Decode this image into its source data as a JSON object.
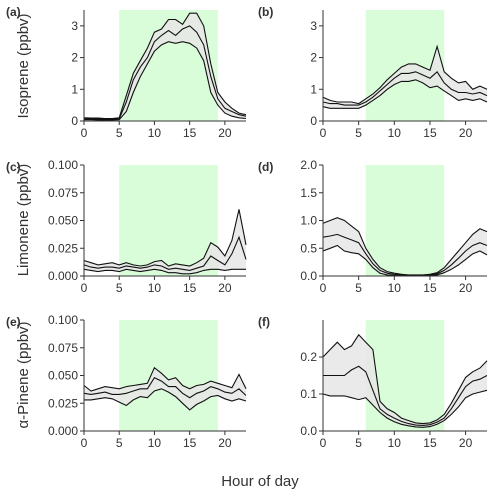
{
  "figure": {
    "xlabel": "Hour of day",
    "row_ylabels": [
      "Isoprene (ppbv)",
      "Limonene (ppbv)",
      "α-Pinene (ppbv)"
    ]
  },
  "colors": {
    "daylight": "#d9fcd9",
    "ribbon": "#e6e6e6",
    "line": "#111111",
    "axis": "#333333"
  },
  "chart_data": [
    {
      "type": "area",
      "panel": "(a)",
      "xlim": [
        0,
        23
      ],
      "ylim": [
        0,
        3.5
      ],
      "xticks": [
        0,
        5,
        10,
        15,
        20
      ],
      "yticks": [
        0,
        1,
        2,
        3
      ],
      "tick_decimals": 0,
      "daylight": [
        5,
        19
      ],
      "x": [
        0,
        1,
        2,
        3,
        4,
        5,
        6,
        7,
        8,
        9,
        10,
        11,
        12,
        13,
        14,
        15,
        16,
        17,
        18,
        19,
        20,
        21,
        22,
        23
      ],
      "series": [
        {
          "role": "upper",
          "values": [
            0.1,
            0.09,
            0.09,
            0.08,
            0.08,
            0.1,
            0.8,
            1.5,
            1.9,
            2.3,
            2.8,
            2.9,
            3.2,
            3.2,
            3.05,
            3.4,
            3.4,
            3.0,
            1.8,
            0.9,
            0.6,
            0.4,
            0.25,
            0.2
          ]
        },
        {
          "role": "mean",
          "values": [
            0.07,
            0.06,
            0.06,
            0.06,
            0.06,
            0.07,
            0.6,
            1.3,
            1.7,
            2.0,
            2.5,
            2.7,
            2.85,
            2.7,
            2.9,
            3.0,
            2.8,
            2.4,
            1.4,
            0.7,
            0.4,
            0.3,
            0.2,
            0.15
          ]
        },
        {
          "role": "lower",
          "values": [
            0.04,
            0.04,
            0.03,
            0.03,
            0.03,
            0.04,
            0.3,
            0.9,
            1.4,
            1.8,
            2.2,
            2.4,
            2.5,
            2.45,
            2.5,
            2.45,
            2.3,
            1.9,
            0.9,
            0.5,
            0.25,
            0.15,
            0.1,
            0.08
          ]
        }
      ]
    },
    {
      "type": "area",
      "panel": "(b)",
      "xlim": [
        0,
        23
      ],
      "ylim": [
        0,
        3.5
      ],
      "xticks": [
        0,
        5,
        10,
        15,
        20
      ],
      "yticks": [
        0,
        1,
        2,
        3
      ],
      "tick_decimals": 0,
      "daylight": [
        6,
        17
      ],
      "x": [
        0,
        1,
        2,
        3,
        4,
        5,
        6,
        7,
        8,
        9,
        10,
        11,
        12,
        13,
        14,
        15,
        16,
        17,
        18,
        19,
        20,
        21,
        22,
        23
      ],
      "series": [
        {
          "role": "upper",
          "values": [
            0.75,
            0.65,
            0.6,
            0.6,
            0.6,
            0.55,
            0.7,
            0.85,
            1.05,
            1.3,
            1.5,
            1.7,
            1.8,
            1.8,
            1.7,
            1.6,
            2.35,
            1.55,
            1.35,
            1.2,
            1.25,
            1.0,
            1.1,
            1.0
          ]
        },
        {
          "role": "mean",
          "values": [
            0.6,
            0.55,
            0.55,
            0.5,
            0.5,
            0.5,
            0.6,
            0.75,
            0.95,
            1.15,
            1.35,
            1.5,
            1.5,
            1.55,
            1.45,
            1.35,
            1.55,
            1.2,
            1.0,
            0.9,
            0.9,
            0.85,
            0.9,
            0.8
          ]
        },
        {
          "role": "lower",
          "values": [
            0.45,
            0.4,
            0.4,
            0.4,
            0.4,
            0.4,
            0.5,
            0.65,
            0.8,
            1.0,
            1.15,
            1.25,
            1.25,
            1.3,
            1.2,
            1.05,
            1.1,
            0.95,
            0.8,
            0.65,
            0.7,
            0.65,
            0.7,
            0.6
          ]
        }
      ]
    },
    {
      "type": "area",
      "panel": "(c)",
      "xlim": [
        0,
        23
      ],
      "ylim": [
        0,
        0.1
      ],
      "xticks": [
        0,
        5,
        10,
        15,
        20
      ],
      "yticks": [
        0,
        0.025,
        0.05,
        0.075,
        0.1
      ],
      "tick_decimals": 3,
      "daylight": [
        5,
        19
      ],
      "x": [
        0,
        1,
        2,
        3,
        4,
        5,
        6,
        7,
        8,
        9,
        10,
        11,
        12,
        13,
        14,
        15,
        16,
        17,
        18,
        19,
        20,
        21,
        22,
        23
      ],
      "series": [
        {
          "role": "upper",
          "values": [
            0.014,
            0.012,
            0.01,
            0.011,
            0.012,
            0.01,
            0.012,
            0.01,
            0.009,
            0.01,
            0.013,
            0.014,
            0.009,
            0.011,
            0.01,
            0.009,
            0.012,
            0.016,
            0.03,
            0.026,
            0.018,
            0.032,
            0.06,
            0.028
          ]
        },
        {
          "role": "mean",
          "values": [
            0.01,
            0.008,
            0.007,
            0.008,
            0.008,
            0.007,
            0.009,
            0.008,
            0.007,
            0.008,
            0.01,
            0.009,
            0.006,
            0.007,
            0.006,
            0.005,
            0.007,
            0.009,
            0.018,
            0.014,
            0.01,
            0.02,
            0.035,
            0.015
          ]
        },
        {
          "role": "lower",
          "values": [
            0.006,
            0.005,
            0.004,
            0.005,
            0.005,
            0.004,
            0.006,
            0.005,
            0.004,
            0.005,
            0.006,
            0.005,
            0.003,
            0.003,
            0.002,
            0.002,
            0.003,
            0.005,
            0.006,
            0.006,
            0.005,
            0.006,
            0.006,
            0.006
          ]
        }
      ]
    },
    {
      "type": "area",
      "panel": "(d)",
      "xlim": [
        0,
        23
      ],
      "ylim": [
        0,
        2.0
      ],
      "xticks": [
        0,
        5,
        10,
        15,
        20
      ],
      "yticks": [
        0,
        0.5,
        1.0,
        1.5,
        2.0
      ],
      "tick_decimals": 1,
      "daylight": [
        6,
        17
      ],
      "x": [
        0,
        1,
        2,
        3,
        4,
        5,
        6,
        7,
        8,
        9,
        10,
        11,
        12,
        13,
        14,
        15,
        16,
        17,
        18,
        19,
        20,
        21,
        22,
        23
      ],
      "series": [
        {
          "role": "upper",
          "values": [
            0.95,
            1.0,
            1.05,
            1.0,
            0.9,
            0.8,
            0.5,
            0.3,
            0.15,
            0.08,
            0.05,
            0.03,
            0.02,
            0.02,
            0.02,
            0.03,
            0.06,
            0.15,
            0.3,
            0.45,
            0.6,
            0.75,
            0.85,
            0.8
          ]
        },
        {
          "role": "mean",
          "values": [
            0.7,
            0.72,
            0.75,
            0.7,
            0.65,
            0.6,
            0.4,
            0.22,
            0.1,
            0.05,
            0.03,
            0.02,
            0.01,
            0.01,
            0.01,
            0.02,
            0.04,
            0.1,
            0.2,
            0.32,
            0.45,
            0.55,
            0.6,
            0.55
          ]
        },
        {
          "role": "lower",
          "values": [
            0.45,
            0.5,
            0.55,
            0.45,
            0.42,
            0.4,
            0.3,
            0.15,
            0.05,
            0.02,
            0.01,
            0.01,
            0.0,
            0.0,
            0.0,
            0.01,
            0.02,
            0.06,
            0.12,
            0.2,
            0.3,
            0.4,
            0.45,
            0.38
          ]
        }
      ]
    },
    {
      "type": "area",
      "panel": "(e)",
      "xlim": [
        0,
        23
      ],
      "ylim": [
        0,
        0.1
      ],
      "xticks": [
        0,
        5,
        10,
        15,
        20
      ],
      "yticks": [
        0,
        0.025,
        0.05,
        0.075,
        0.1
      ],
      "tick_decimals": 3,
      "daylight": [
        5,
        19
      ],
      "x": [
        0,
        1,
        2,
        3,
        4,
        5,
        6,
        7,
        8,
        9,
        10,
        11,
        12,
        13,
        14,
        15,
        16,
        17,
        18,
        19,
        20,
        21,
        22,
        23
      ],
      "series": [
        {
          "role": "upper",
          "values": [
            0.041,
            0.036,
            0.038,
            0.04,
            0.039,
            0.038,
            0.04,
            0.041,
            0.042,
            0.043,
            0.057,
            0.052,
            0.046,
            0.048,
            0.041,
            0.038,
            0.041,
            0.042,
            0.045,
            0.043,
            0.041,
            0.039,
            0.051,
            0.038
          ]
        },
        {
          "role": "mean",
          "values": [
            0.034,
            0.033,
            0.034,
            0.035,
            0.033,
            0.033,
            0.034,
            0.036,
            0.038,
            0.038,
            0.048,
            0.045,
            0.04,
            0.04,
            0.034,
            0.03,
            0.034,
            0.036,
            0.04,
            0.038,
            0.035,
            0.034,
            0.038,
            0.032
          ]
        },
        {
          "role": "lower",
          "values": [
            0.028,
            0.028,
            0.029,
            0.03,
            0.029,
            0.026,
            0.023,
            0.028,
            0.031,
            0.03,
            0.036,
            0.038,
            0.035,
            0.031,
            0.025,
            0.019,
            0.024,
            0.027,
            0.031,
            0.032,
            0.029,
            0.027,
            0.029,
            0.027
          ]
        }
      ]
    },
    {
      "type": "area",
      "panel": "(f)",
      "xlim": [
        0,
        23
      ],
      "ylim": [
        0,
        0.3
      ],
      "xticks": [
        0,
        5,
        10,
        15,
        20
      ],
      "yticks": [
        0,
        0.1,
        0.2
      ],
      "tick_decimals": 1,
      "daylight": [
        6,
        17
      ],
      "x": [
        0,
        1,
        2,
        3,
        4,
        5,
        6,
        7,
        8,
        9,
        10,
        11,
        12,
        13,
        14,
        15,
        16,
        17,
        18,
        19,
        20,
        21,
        22,
        23
      ],
      "series": [
        {
          "role": "upper",
          "values": [
            0.2,
            0.22,
            0.24,
            0.22,
            0.23,
            0.26,
            0.24,
            0.22,
            0.08,
            0.06,
            0.05,
            0.035,
            0.028,
            0.022,
            0.02,
            0.022,
            0.03,
            0.045,
            0.075,
            0.11,
            0.145,
            0.16,
            0.17,
            0.19
          ]
        },
        {
          "role": "mean",
          "values": [
            0.15,
            0.15,
            0.15,
            0.15,
            0.165,
            0.175,
            0.16,
            0.11,
            0.06,
            0.045,
            0.035,
            0.026,
            0.02,
            0.016,
            0.015,
            0.017,
            0.024,
            0.035,
            0.06,
            0.09,
            0.12,
            0.135,
            0.14,
            0.15
          ]
        },
        {
          "role": "lower",
          "values": [
            0.1,
            0.095,
            0.095,
            0.095,
            0.09,
            0.085,
            0.09,
            0.07,
            0.05,
            0.035,
            0.025,
            0.018,
            0.014,
            0.011,
            0.01,
            0.012,
            0.018,
            0.028,
            0.045,
            0.065,
            0.09,
            0.1,
            0.105,
            0.11
          ]
        }
      ]
    }
  ]
}
